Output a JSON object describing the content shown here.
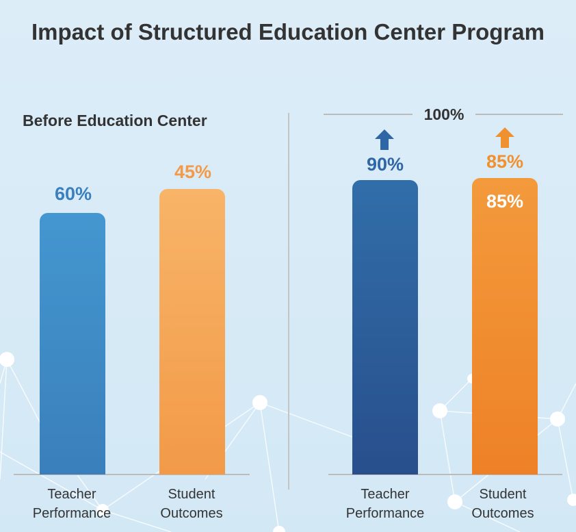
{
  "title": "Impact of Structured Education Center Program",
  "chart_data": [
    {
      "type": "bar",
      "title": "Before Education Center",
      "categories": [
        "Teacher Performance",
        "Student Outcomes"
      ],
      "values": [
        60,
        45
      ],
      "labels": [
        "60%",
        "45%"
      ],
      "colors": [
        "#3d8bc8",
        "#f5a24e"
      ]
    },
    {
      "type": "bar",
      "title": "",
      "reference_label": "100%",
      "categories": [
        "Teacher Performance",
        "Student Outcomes"
      ],
      "values": [
        90,
        85
      ],
      "labels": [
        "90%",
        "85%"
      ],
      "inner_label": "85%",
      "colors": [
        "#2d5f9a",
        "#f08a2a"
      ],
      "annotations": [
        "up-arrow",
        "up-arrow"
      ]
    }
  ],
  "cats": {
    "t1": "Teacher",
    "t2": "Performance",
    "s1": "Student",
    "s2": "Outcomes"
  }
}
